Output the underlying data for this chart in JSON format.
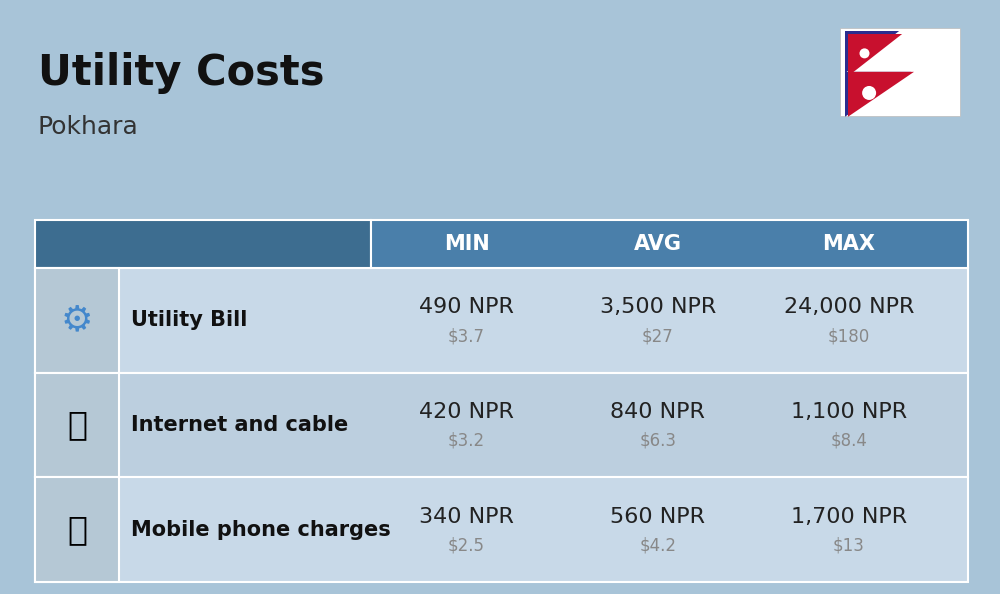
{
  "title": "Utility Costs",
  "subtitle": "Pokhara",
  "background_color": "#a8c4d8",
  "header_bg": "#4a7faa",
  "header_text_color": "#ffffff",
  "col_headers": [
    "MIN",
    "AVG",
    "MAX"
  ],
  "rows": [
    {
      "label": "Utility Bill",
      "min_npr": "490 NPR",
      "min_usd": "$3.7",
      "avg_npr": "3,500 NPR",
      "avg_usd": "$27",
      "max_npr": "24,000 NPR",
      "max_usd": "$180"
    },
    {
      "label": "Internet and cable",
      "min_npr": "420 NPR",
      "min_usd": "$3.2",
      "avg_npr": "840 NPR",
      "avg_usd": "$6.3",
      "max_npr": "1,100 NPR",
      "max_usd": "$8.4"
    },
    {
      "label": "Mobile phone charges",
      "min_npr": "340 NPR",
      "min_usd": "$2.5",
      "avg_npr": "560 NPR",
      "avg_usd": "$4.2",
      "max_npr": "1,700 NPR",
      "max_usd": "$13"
    }
  ],
  "title_fontsize": 30,
  "subtitle_fontsize": 18,
  "label_fontsize": 15,
  "value_fontsize": 16,
  "usd_fontsize": 12,
  "header_fontsize": 15,
  "npr_color": "#222222",
  "usd_color": "#888888",
  "label_color": "#111111",
  "row_colors": [
    "#c8d9e8",
    "#bccfdf",
    "#c8d9e8"
  ],
  "icon_col_color": "#b5c8d5",
  "header_left_color": "#3d6d90"
}
